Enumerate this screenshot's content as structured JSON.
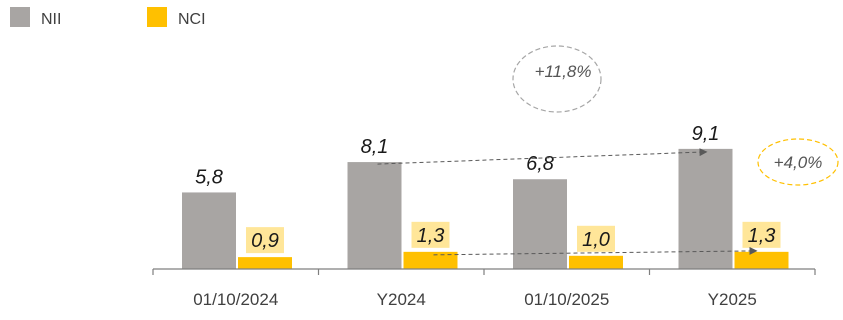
{
  "chart_data": {
    "type": "bar",
    "categories": [
      "01/10/2024",
      "Y2024",
      "01/10/2025",
      "Y2025"
    ],
    "series": [
      {
        "name": "NII",
        "values": [
          5.8,
          8.1,
          6.8,
          9.1
        ],
        "labels": [
          "5,8",
          "8,1",
          "6,8",
          "9,1"
        ],
        "color": "#a8a5a3"
      },
      {
        "name": "NCI",
        "values": [
          0.9,
          1.3,
          1.0,
          1.3
        ],
        "labels": [
          "0,9",
          "1,3",
          "1,0",
          "1,3"
        ],
        "color": "#ffc000"
      }
    ],
    "annotations": [
      {
        "text": "+11,8%",
        "from": "Y2024",
        "to": "Y2025",
        "series": "NII",
        "border_color": "#a6a6a6"
      },
      {
        "text": "+4,0%",
        "from": "Y2024",
        "to": "Y2025",
        "series": "NCI",
        "border_color": "#ffc000"
      }
    ],
    "ylim": [
      0,
      10
    ],
    "legend_position": "top-left",
    "grid": false,
    "colors": {
      "axis": "#7f7f7f",
      "value_label_highlight": "#ffe699",
      "text": "#404040"
    }
  }
}
